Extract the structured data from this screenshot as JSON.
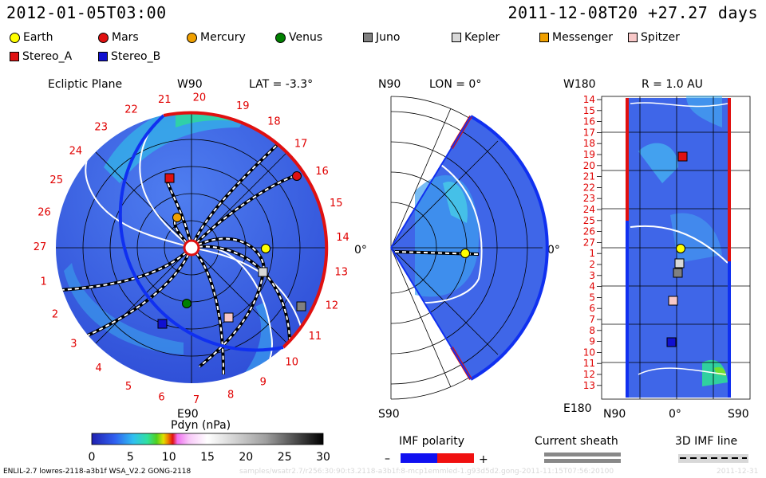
{
  "header": {
    "left_time": "2012-01-05T03:00",
    "right_time": "2011-12-08T20 +27.27 days"
  },
  "legend": [
    {
      "label": "Earth",
      "shape": "circle",
      "color": "#ffff00"
    },
    {
      "label": "Mars",
      "shape": "circle",
      "color": "#e01010"
    },
    {
      "label": "Mercury",
      "shape": "circle",
      "color": "#f0a000"
    },
    {
      "label": "Venus",
      "shape": "circle",
      "color": "#008000"
    },
    {
      "label": "Juno",
      "shape": "square",
      "color": "#808080"
    },
    {
      "label": "Kepler",
      "shape": "square",
      "color": "#d8d8d8"
    },
    {
      "label": "Messenger",
      "shape": "square",
      "color": "#f0a000"
    },
    {
      "label": "Spitzer",
      "shape": "square",
      "color": "#f8c8c8"
    },
    {
      "label": "Stereo_A",
      "shape": "square",
      "color": "#e01010"
    },
    {
      "label": "Stereo_B",
      "shape": "square",
      "color": "#1010d0"
    }
  ],
  "panels": {
    "ecliptic": {
      "title": "Ecliptic Plane",
      "top": "W90",
      "bottom": "E90",
      "lat": "LAT = -3.3°",
      "right": "0°",
      "ticks": [
        "20",
        "21",
        "22",
        "23",
        "24",
        "25",
        "26",
        "27",
        "1",
        "2",
        "3",
        "4",
        "5",
        "6",
        "7",
        "8",
        "9",
        "10",
        "11",
        "12",
        "13",
        "14",
        "15",
        "16",
        "17",
        "18",
        "19"
      ]
    },
    "meridional": {
      "top": "N90",
      "bottom": "S90",
      "lon": "LON = 0°",
      "right": "0°"
    },
    "radial": {
      "top": "W180",
      "bottom": "E180",
      "r": "R = 1.0 AU",
      "ticks": [
        "14",
        "15",
        "16",
        "17",
        "18",
        "19",
        "20",
        "21",
        "22",
        "23",
        "24",
        "25",
        "26",
        "27",
        "1",
        "2",
        "3",
        "4",
        "5",
        "6",
        "7",
        "8",
        "9",
        "10",
        "11",
        "12",
        "13"
      ],
      "x_labels": [
        "N90",
        "0°",
        "S90"
      ]
    }
  },
  "colorbar": {
    "title": "Pdyn (nPa)",
    "ticks": [
      "0",
      "5",
      "10",
      "15",
      "20",
      "25",
      "30"
    ]
  },
  "imf": {
    "title": "IMF polarity",
    "minus": "–",
    "plus": "+"
  },
  "sheath": {
    "title": "Current sheath"
  },
  "imf3d": {
    "title": "3D IMF line"
  },
  "footer": {
    "model": "ENLIL-2.7 lowres-2118-a3b1f WSA_V2.2 GONG-2118",
    "path": "samples/wsatr2.7/r256:30:90:t3.2118-a3b1f:8-mcp1emmled-1.g93d5d2.gong-2011-11:15T07:56:20100",
    "date": "2011-12-31"
  }
}
